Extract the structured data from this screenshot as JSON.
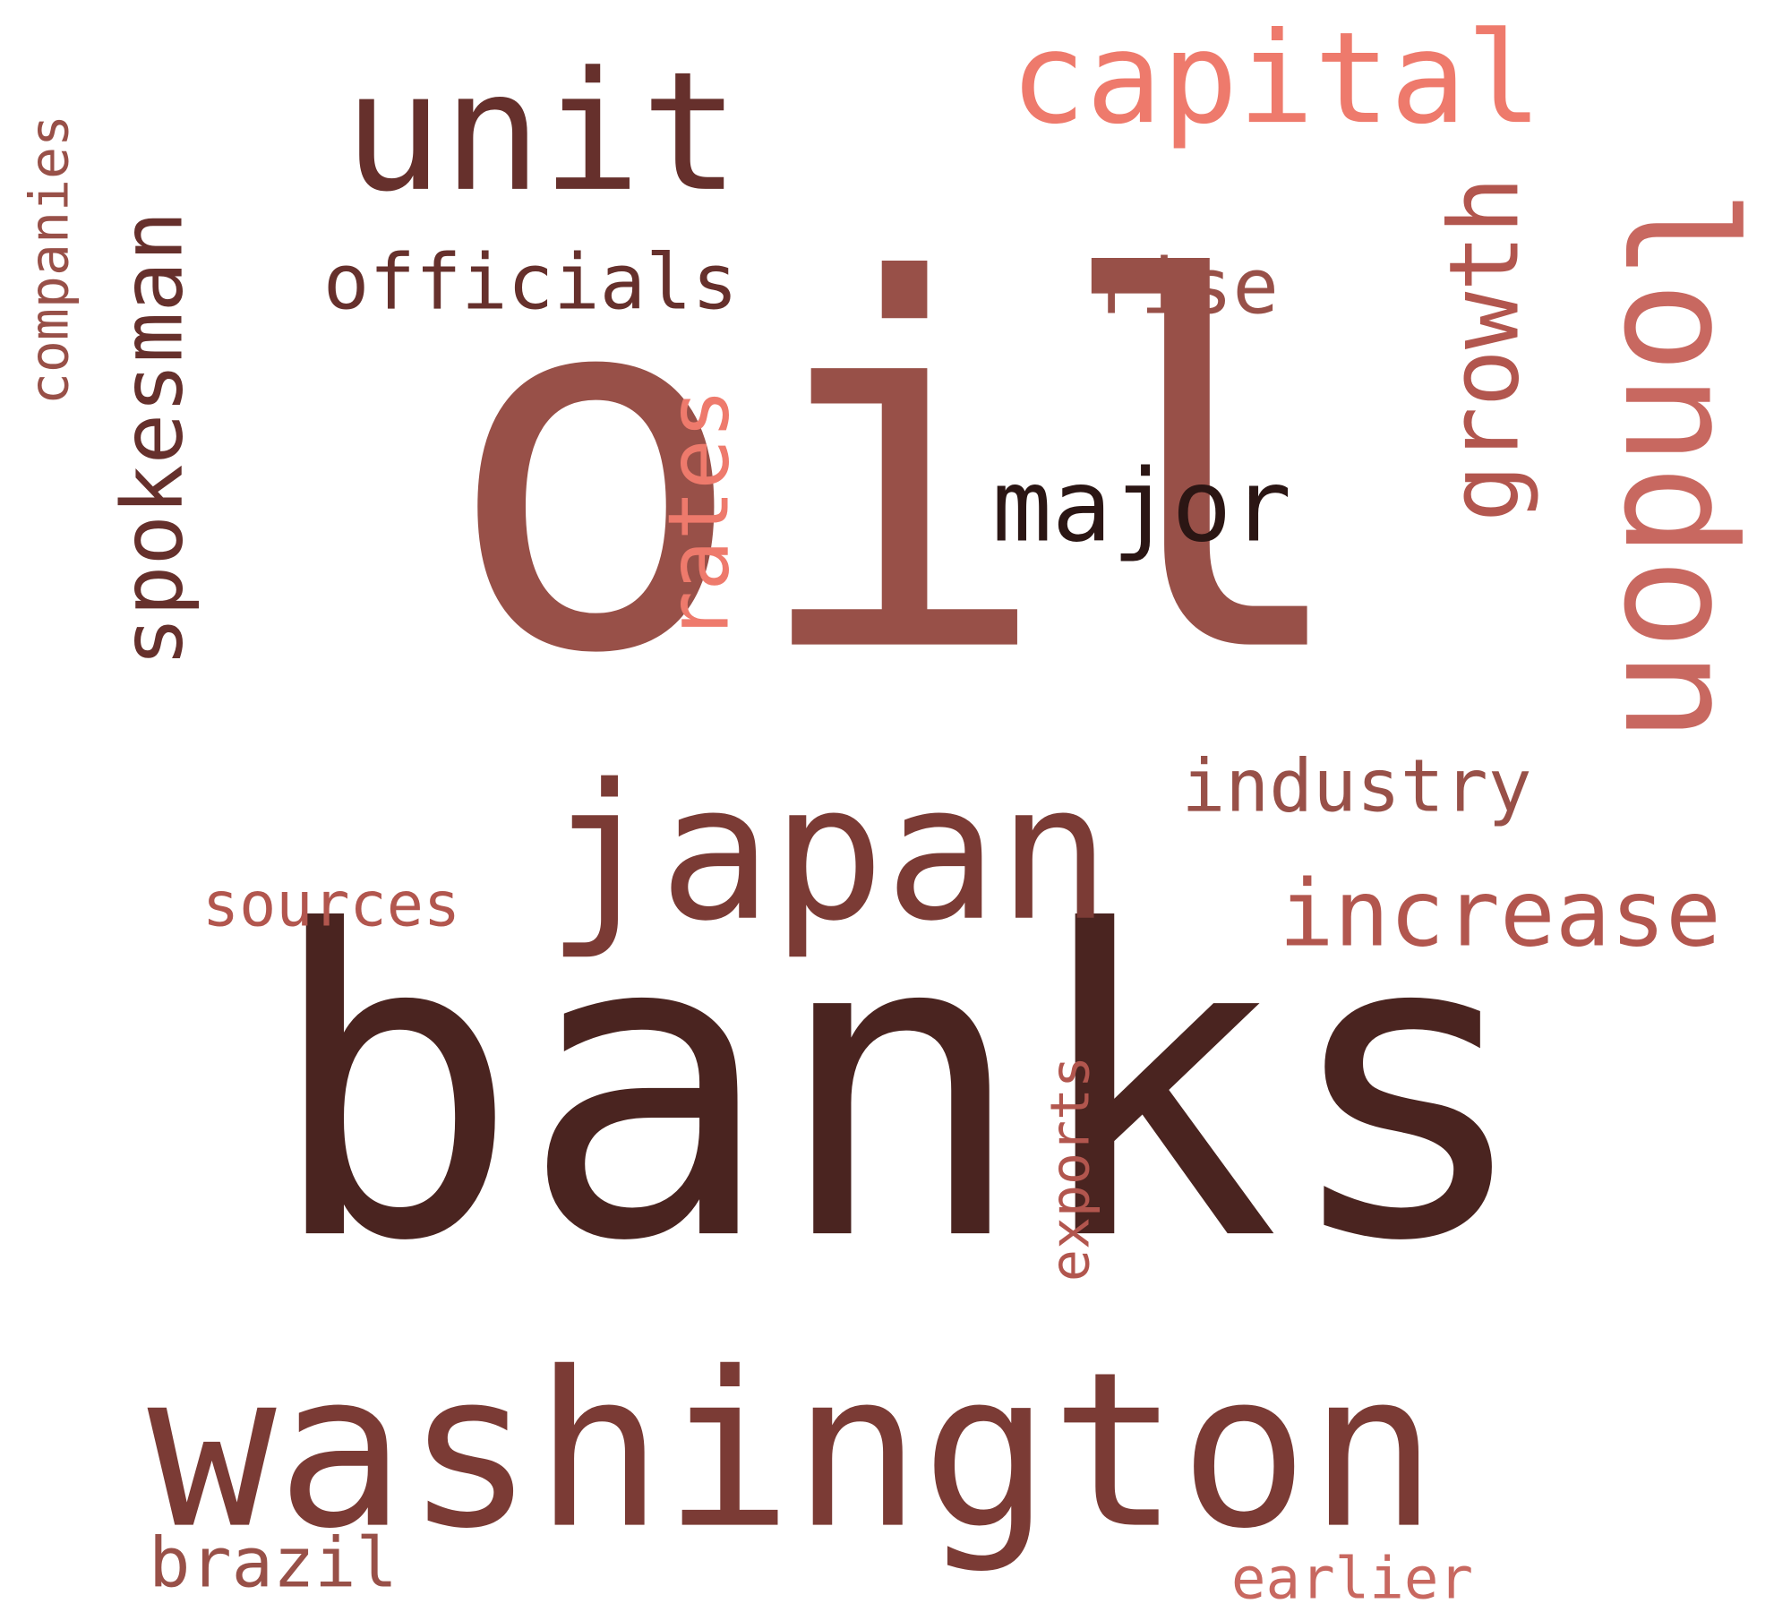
{
  "colors": {
    "darkest": "#2b1614",
    "dark": "#4a2420",
    "brown": "#66302c",
    "rust": "#7b3b35",
    "sienna": "#985048",
    "rose": "#b2564e",
    "salmon": "#c86860",
    "coral": "#ee7a6c"
  },
  "words": [
    {
      "text": "oil",
      "color": "sienna"
    },
    {
      "text": "banks",
      "color": "dark"
    },
    {
      "text": "washington",
      "color": "rust"
    },
    {
      "text": "unit",
      "color": "brown"
    },
    {
      "text": "capital",
      "color": "coral"
    },
    {
      "text": "london",
      "color": "salmon"
    },
    {
      "text": "spokesman",
      "color": "brown"
    },
    {
      "text": "officials",
      "color": "brown"
    },
    {
      "text": "japan",
      "color": "rust"
    },
    {
      "text": "increase",
      "color": "rose"
    },
    {
      "text": "rates",
      "color": "coral"
    },
    {
      "text": "growth",
      "color": "rose"
    },
    {
      "text": "rise",
      "color": "sienna"
    },
    {
      "text": "major",
      "color": "darkest"
    },
    {
      "text": "companies",
      "color": "sienna"
    },
    {
      "text": "industry",
      "color": "sienna"
    },
    {
      "text": "exports",
      "color": "rose"
    },
    {
      "text": "sources",
      "color": "rose"
    },
    {
      "text": "brazil",
      "color": "sienna"
    },
    {
      "text": "earlier",
      "color": "salmon"
    }
  ]
}
